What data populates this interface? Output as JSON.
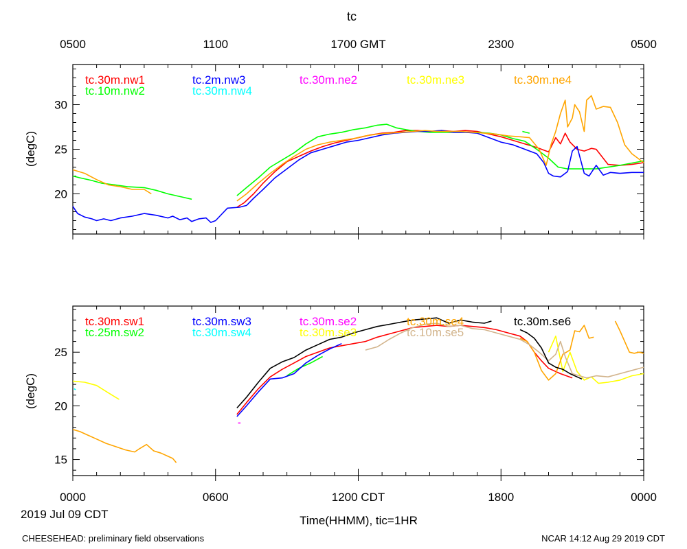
{
  "title": "tc",
  "top_axis_labels": [
    "0500",
    "1100",
    "1700 GMT",
    "2300",
    "0500"
  ],
  "bottom_axis_labels": [
    "0000",
    "0600",
    "1200 CDT",
    "1800",
    "0000"
  ],
  "date_label": "2019 Jul 09 CDT",
  "xlabel": "Time(HHMM), tic=1HR",
  "footer_left": "CHEESEHEAD: preliminary field observations",
  "footer_right": "NCAR 14:12 Aug 29 2019 CDT",
  "chart_data": [
    {
      "type": "line",
      "panel": "top",
      "ylabel": "(degC)",
      "xlim": [
        0,
        24
      ],
      "ylim": [
        15.5,
        34.5
      ],
      "yticks": [
        20,
        25,
        30
      ],
      "ytick_labels": [
        "20",
        "25",
        "30"
      ],
      "series": [
        {
          "name": "tc.30m.nw1",
          "color": "#ff0000",
          "x": [
            6.9,
            7.2,
            7.6,
            8.0,
            8.5,
            9.0,
            9.5,
            10.0,
            10.5,
            11.0,
            11.5,
            12.0,
            12.5,
            13.0,
            13.5,
            14.0,
            14.5,
            15.0,
            15.5,
            16.0,
            16.5,
            17.0,
            17.5,
            18.0,
            18.5,
            19.0,
            19.5,
            20.0,
            20.3,
            20.5,
            20.7,
            20.9,
            21.2,
            21.5,
            21.8,
            22.0,
            22.5,
            23.0,
            23.5,
            24.0
          ],
          "y": [
            18.5,
            19.0,
            20.0,
            21.2,
            22.5,
            23.6,
            24.2,
            24.8,
            25.3,
            25.7,
            26.0,
            26.3,
            26.6,
            26.8,
            26.9,
            27.1,
            27.1,
            27.0,
            27.1,
            27.0,
            27.1,
            27.0,
            26.7,
            26.4,
            26.0,
            25.6,
            25.2,
            24.7,
            26.3,
            25.6,
            26.8,
            25.8,
            25.0,
            24.8,
            25.1,
            25.0,
            23.3,
            23.2,
            23.3,
            23.5
          ]
        },
        {
          "name": "tc.10m.nw2",
          "color": "#00ff00",
          "x": [
            0.0,
            0.3,
            0.8,
            1.2,
            1.8,
            2.3,
            3.0,
            3.5,
            4.0,
            4.5,
            5.0
          ],
          "y": [
            22.0,
            21.8,
            21.5,
            21.2,
            21.0,
            20.8,
            20.7,
            20.4,
            20.0,
            19.7,
            19.4
          ]
        },
        {
          "name": "tc.10m.nw2b",
          "color": "#00ff00",
          "x": [
            6.9,
            7.3,
            7.8,
            8.3,
            8.8,
            9.3,
            9.8,
            10.3,
            10.8,
            11.3,
            11.8,
            12.3,
            12.8,
            13.2,
            13.6,
            14.0,
            14.5,
            15.0,
            15.5,
            16.0,
            16.5,
            17.0,
            17.5,
            18.0,
            18.5,
            19.0,
            19.5,
            20.0,
            20.4,
            20.8,
            21.3,
            22.0,
            23.0,
            24.0
          ],
          "y": [
            19.8,
            20.7,
            21.8,
            23.0,
            23.8,
            24.6,
            25.6,
            26.4,
            26.7,
            26.9,
            27.2,
            27.4,
            27.7,
            27.8,
            27.4,
            27.2,
            27.0,
            26.9,
            26.9,
            26.9,
            26.9,
            26.9,
            26.8,
            26.6,
            26.2,
            25.9,
            25.0,
            24.0,
            23.0,
            22.8,
            22.8,
            22.8,
            23.2,
            23.7
          ]
        },
        {
          "name": "tc.10m.nw2c",
          "color": "#00ff00",
          "x": [
            18.9,
            19.2
          ],
          "y": [
            27.0,
            26.8
          ]
        },
        {
          "name": "tc.2m.nw3",
          "color": "#0000ff",
          "x": [
            0.0,
            0.2,
            0.5,
            0.8,
            1.0,
            1.3,
            1.6,
            2.0,
            2.5,
            3.0,
            3.5,
            4.0,
            4.2,
            4.5,
            4.8,
            5.0,
            5.3,
            5.6,
            5.8,
            6.0,
            6.5,
            7.0,
            7.3,
            7.6,
            8.0,
            8.5,
            9.0,
            9.5,
            10.0,
            10.5,
            11.0,
            11.5,
            12.0,
            12.5,
            13.0,
            13.5,
            14.0,
            14.5,
            15.0,
            15.5,
            16.0,
            16.5,
            17.0,
            17.5,
            18.0,
            18.5,
            19.0,
            19.5,
            19.8,
            20.0,
            20.2,
            20.5,
            20.8,
            21.0,
            21.2,
            21.5,
            21.7,
            22.0,
            22.3,
            22.6,
            23.0,
            23.5,
            24.0
          ],
          "y": [
            18.6,
            17.8,
            17.4,
            17.2,
            17.0,
            17.2,
            17.0,
            17.3,
            17.5,
            17.8,
            17.6,
            17.3,
            17.5,
            17.1,
            17.3,
            16.9,
            17.2,
            17.3,
            16.8,
            17.0,
            18.4,
            18.5,
            18.7,
            19.5,
            20.5,
            21.8,
            22.8,
            23.8,
            24.6,
            25.0,
            25.4,
            25.8,
            26.0,
            26.3,
            26.6,
            26.8,
            26.9,
            27.0,
            27.0,
            27.1,
            26.9,
            26.9,
            26.8,
            26.3,
            25.8,
            25.5,
            25.0,
            24.5,
            23.5,
            22.3,
            22.0,
            21.9,
            22.5,
            24.8,
            25.3,
            22.3,
            22.0,
            23.2,
            22.1,
            22.4,
            22.3,
            22.4,
            22.4
          ]
        },
        {
          "name": "tc.30m.nw4",
          "color": "#00ffff",
          "x": [],
          "y": []
        },
        {
          "name": "tc.30m.ne2",
          "color": "#ff00ff",
          "x": [],
          "y": []
        },
        {
          "name": "tc.30m.ne3",
          "color": "#ffff00",
          "x": [],
          "y": []
        },
        {
          "name": "tc.30m.ne4",
          "color": "#ffa500",
          "x": [
            0.0,
            0.5,
            1.0,
            1.5,
            2.0,
            2.5,
            3.0,
            3.3
          ],
          "y": [
            22.7,
            22.3,
            21.6,
            21.0,
            20.8,
            20.5,
            20.5,
            20.0
          ]
        },
        {
          "name": "tc.30m.ne4b",
          "color": "#ffa500",
          "x": [
            6.9,
            7.3,
            7.8,
            8.3,
            8.8,
            9.3,
            9.8,
            10.3,
            10.8,
            11.3,
            11.8,
            12.3,
            12.8,
            13.3,
            13.8,
            14.3,
            14.8,
            15.3,
            15.8,
            16.3,
            16.8,
            17.3,
            17.8,
            18.3,
            18.8,
            19.2,
            19.6,
            19.9,
            20.1,
            20.3,
            20.5,
            20.7,
            20.8,
            21.0,
            21.1,
            21.3,
            21.5,
            21.6,
            21.8,
            22.0,
            22.3,
            22.6,
            22.9,
            23.2,
            23.5,
            24.0
          ],
          "y": [
            19.2,
            20.0,
            21.2,
            22.3,
            23.3,
            24.2,
            25.0,
            25.5,
            25.8,
            26.0,
            26.2,
            26.5,
            26.7,
            26.8,
            26.9,
            27.0,
            27.1,
            27.0,
            27.0,
            27.0,
            26.9,
            26.8,
            26.7,
            26.5,
            26.4,
            26.3,
            25.0,
            23.2,
            25.5,
            27.0,
            29.0,
            30.5,
            27.5,
            28.5,
            30.0,
            29.2,
            27.0,
            30.5,
            31.0,
            29.5,
            29.8,
            29.7,
            28.0,
            25.5,
            24.5,
            23.5
          ]
        }
      ]
    },
    {
      "type": "line",
      "panel": "bottom",
      "ylabel": "(degC)",
      "xlim": [
        0,
        24
      ],
      "ylim": [
        13.5,
        29.3
      ],
      "yticks": [
        15,
        20,
        25
      ],
      "ytick_labels": [
        "15",
        "20",
        "25"
      ],
      "series": [
        {
          "name": "tc.30m.sw1",
          "color": "#ff0000",
          "x": [
            6.9,
            7.3,
            7.8,
            8.3,
            8.8,
            9.3,
            9.8,
            10.3,
            10.8,
            11.3,
            11.8,
            12.3,
            12.8,
            13.3,
            13.8,
            14.3,
            14.8,
            15.3,
            15.8,
            16.3,
            16.8,
            17.3,
            17.8,
            18.3,
            18.8,
            19.1,
            19.4,
            19.7,
            20.0,
            20.5,
            21.0
          ],
          "y": [
            19.2,
            20.3,
            21.6,
            22.7,
            23.4,
            24.0,
            24.6,
            25.0,
            25.4,
            25.6,
            25.8,
            26.0,
            26.4,
            26.7,
            27.0,
            27.3,
            27.4,
            27.5,
            27.4,
            27.5,
            27.4,
            27.3,
            27.1,
            26.8,
            26.5,
            26.0,
            25.0,
            24.2,
            23.5,
            23.0,
            22.6
          ]
        },
        {
          "name": "tc.25m.sw2",
          "color": "#00ff00",
          "x": [
            9.0,
            9.5,
            10.0,
            10.5
          ],
          "y": [
            22.8,
            23.5,
            24.0,
            24.6
          ]
        },
        {
          "name": "tc.30m.sw3",
          "color": "#0000ff",
          "x": [
            6.9,
            7.3,
            7.8,
            8.3,
            8.8,
            9.3,
            9.8,
            10.3,
            10.8,
            11.3
          ],
          "y": [
            19.0,
            20.0,
            21.3,
            22.5,
            22.6,
            23.0,
            24.0,
            24.7,
            25.3,
            25.8
          ]
        },
        {
          "name": "tc.30m.sw4",
          "color": "#00ffff",
          "x": [
            0.05,
            0.12
          ],
          "y": [
            21.6,
            21.5
          ]
        },
        {
          "name": "tc.30m.se2",
          "color": "#ff00ff",
          "x": [
            6.95,
            7.05
          ],
          "y": [
            18.4,
            18.4
          ]
        },
        {
          "name": "tc.30m.se3",
          "color": "#ffff00",
          "x": [
            0.0,
            0.5,
            1.0,
            1.5,
            1.8,
            1.95
          ],
          "y": [
            22.3,
            22.2,
            21.9,
            21.2,
            20.8,
            20.6
          ]
        },
        {
          "name": "tc.30m.se3b",
          "color": "#ffff00",
          "x": [
            20.0,
            20.3,
            20.6,
            20.9,
            21.2,
            21.5,
            21.8,
            22.1,
            22.5,
            23.0,
            23.5,
            24.0
          ],
          "y": [
            25.0,
            26.5,
            23.2,
            25.0,
            23.2,
            22.4,
            22.7,
            22.1,
            22.2,
            22.4,
            22.8,
            23.0
          ]
        },
        {
          "name": "tc.30m.se4",
          "color": "#ffa500",
          "x": [
            0.0,
            0.3,
            0.6,
            1.0,
            1.4,
            1.8,
            2.2,
            2.6,
            2.8,
            3.1,
            3.4,
            3.7,
            4.0,
            4.2,
            4.35
          ],
          "y": [
            17.8,
            17.6,
            17.3,
            16.9,
            16.5,
            16.2,
            15.9,
            15.7,
            16.0,
            16.4,
            15.8,
            15.6,
            15.3,
            15.1,
            14.7
          ]
        },
        {
          "name": "tc.30m.se4b",
          "color": "#ffa500",
          "x": [
            18.8,
            19.1,
            19.4,
            19.7,
            20.0,
            20.3,
            20.6,
            20.9,
            21.1,
            21.3,
            21.5,
            21.7,
            21.9
          ],
          "y": [
            26.3,
            26.0,
            25.0,
            23.3,
            22.4,
            23.0,
            24.8,
            25.2,
            27.0,
            26.9,
            27.5,
            26.3,
            26.4
          ]
        },
        {
          "name": "tc.30m.se4c",
          "color": "#ffa500",
          "x": [
            22.8,
            23.0,
            23.2,
            23.4,
            23.6,
            23.8,
            24.0
          ],
          "y": [
            27.9,
            27.0,
            26.0,
            25.0,
            24.9,
            25.0,
            24.9
          ]
        },
        {
          "name": "tc.10m.se5",
          "color": "#d2b48c",
          "x": [
            12.3,
            12.8,
            13.3,
            13.8,
            14.3,
            14.8,
            15.3,
            15.8,
            16.3,
            16.8,
            17.3,
            17.8,
            18.3,
            18.8,
            19.2,
            19.6,
            20.0,
            20.3,
            20.5,
            20.7,
            21.0,
            21.3,
            21.6,
            22.0,
            22.5,
            23.0,
            23.5,
            24.0
          ],
          "y": [
            25.2,
            25.5,
            26.2,
            26.8,
            27.3,
            27.6,
            27.7,
            27.4,
            27.5,
            27.2,
            27.1,
            26.8,
            26.5,
            26.2,
            25.7,
            25.0,
            24.2,
            24.8,
            26.0,
            24.6,
            23.0,
            22.8,
            22.6,
            22.8,
            22.7,
            23.0,
            23.3,
            23.6
          ]
        },
        {
          "name": "tc.30m.se6",
          "color": "#000000",
          "x": [
            6.9,
            7.3,
            7.8,
            8.3,
            8.8,
            9.3,
            9.8,
            10.3,
            10.8,
            11.3,
            11.8,
            12.3,
            12.8,
            13.3,
            13.8,
            14.3,
            14.8,
            15.3,
            15.8,
            16.3,
            16.8,
            17.3,
            17.6
          ],
          "y": [
            19.8,
            20.8,
            22.2,
            23.5,
            24.1,
            24.5,
            25.2,
            25.7,
            26.2,
            26.4,
            26.8,
            27.1,
            27.4,
            27.6,
            27.8,
            28.0,
            28.1,
            28.2,
            27.7,
            28.0,
            27.8,
            27.7,
            27.9
          ]
        },
        {
          "name": "tc.30m.se6b",
          "color": "#000000",
          "x": [
            18.8,
            19.1,
            19.4,
            19.7,
            20.0,
            20.3,
            20.6,
            20.9,
            21.2,
            21.4
          ],
          "y": [
            27.1,
            26.8,
            26.3,
            25.4,
            24.0,
            23.6,
            23.4,
            23.0,
            22.7,
            22.5
          ]
        }
      ]
    }
  ],
  "legend_top": [
    {
      "label": "tc.30m.nw1",
      "color": "#ff0000"
    },
    {
      "label": "tc.10m.nw2",
      "color": "#00ff00"
    },
    {
      "label": "tc.2m.nw3",
      "color": "#0000ff"
    },
    {
      "label": "tc.30m.nw4",
      "color": "#00ffff"
    },
    {
      "label": "tc.30m.ne2",
      "color": "#ff00ff"
    },
    {
      "label": "tc.30m.ne3",
      "color": "#ffff00"
    },
    {
      "label": "tc.30m.ne4",
      "color": "#ffa500"
    }
  ],
  "legend_bottom": [
    {
      "label": "tc.30m.sw1",
      "color": "#ff0000"
    },
    {
      "label": "tc.25m.sw2",
      "color": "#00ff00"
    },
    {
      "label": "tc.30m.sw3",
      "color": "#0000ff"
    },
    {
      "label": "tc.30m.sw4",
      "color": "#00ffff"
    },
    {
      "label": "tc.30m.se2",
      "color": "#ff00ff"
    },
    {
      "label": "tc.30m.se3",
      "color": "#ffff00"
    },
    {
      "label": "tc.30m.se4",
      "color": "#ffa500"
    },
    {
      "label": "tc.10m.se5",
      "color": "#d2b48c"
    },
    {
      "label": "tc.30m.se6",
      "color": "#000000"
    }
  ]
}
